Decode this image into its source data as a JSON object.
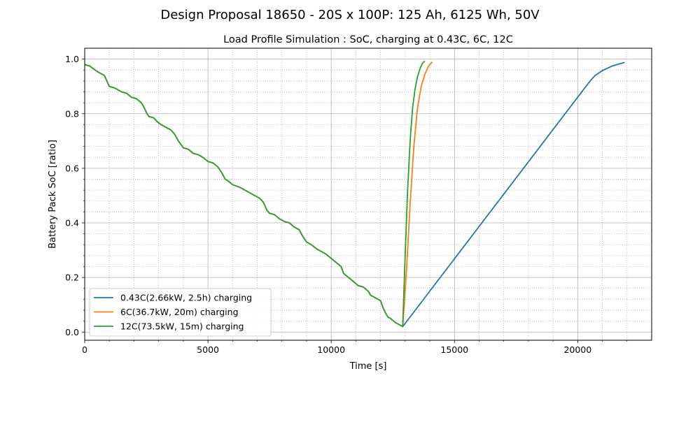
{
  "figure": {
    "suptitle": "Design Proposal 18650 - 20S x 100P: 125 Ah, 6125 Wh, 50V"
  },
  "chart_data": {
    "type": "line",
    "title": "Load Profile Simulation : SoC, charging at 0.43C, 6C, 12C",
    "xlabel": "Time [s]",
    "ylabel": "Battery Pack SoC [ratio]",
    "xlim": [
      0,
      23000
    ],
    "ylim": [
      -0.03,
      1.04
    ],
    "xticks": [
      0,
      5000,
      10000,
      15000,
      20000
    ],
    "xtick_labels": [
      "0",
      "5000",
      "10000",
      "15000",
      "20000"
    ],
    "yticks": [
      0.0,
      0.2,
      0.4,
      0.6,
      0.8,
      1.0
    ],
    "ytick_labels": [
      "0.0",
      "0.2",
      "0.4",
      "0.6",
      "0.8",
      "1.0"
    ],
    "grid": true,
    "minor_grid": true,
    "legend_position": "lower-left",
    "discharge": [
      [
        0,
        0.98
      ],
      [
        200,
        0.975
      ],
      [
        500,
        0.955
      ],
      [
        800,
        0.94
      ],
      [
        900,
        0.92
      ],
      [
        1000,
        0.9
      ],
      [
        1200,
        0.895
      ],
      [
        1300,
        0.89
      ],
      [
        1500,
        0.88
      ],
      [
        1700,
        0.875
      ],
      [
        1900,
        0.86
      ],
      [
        2100,
        0.855
      ],
      [
        2300,
        0.84
      ],
      [
        2400,
        0.825
      ],
      [
        2500,
        0.805
      ],
      [
        2600,
        0.79
      ],
      [
        2800,
        0.785
      ],
      [
        2950,
        0.77
      ],
      [
        3100,
        0.76
      ],
      [
        3300,
        0.75
      ],
      [
        3500,
        0.74
      ],
      [
        3650,
        0.725
      ],
      [
        3800,
        0.7
      ],
      [
        4000,
        0.675
      ],
      [
        4200,
        0.67
      ],
      [
        4400,
        0.655
      ],
      [
        4600,
        0.65
      ],
      [
        4800,
        0.64
      ],
      [
        5000,
        0.625
      ],
      [
        5200,
        0.62
      ],
      [
        5400,
        0.605
      ],
      [
        5550,
        0.585
      ],
      [
        5700,
        0.56
      ],
      [
        5800,
        0.555
      ],
      [
        6000,
        0.54
      ],
      [
        6300,
        0.53
      ],
      [
        6500,
        0.52
      ],
      [
        6700,
        0.51
      ],
      [
        6900,
        0.5
      ],
      [
        7100,
        0.49
      ],
      [
        7250,
        0.475
      ],
      [
        7400,
        0.445
      ],
      [
        7500,
        0.435
      ],
      [
        7700,
        0.43
      ],
      [
        7900,
        0.415
      ],
      [
        8100,
        0.405
      ],
      [
        8300,
        0.4
      ],
      [
        8500,
        0.385
      ],
      [
        8700,
        0.375
      ],
      [
        8850,
        0.35
      ],
      [
        9000,
        0.33
      ],
      [
        9200,
        0.32
      ],
      [
        9400,
        0.305
      ],
      [
        9600,
        0.295
      ],
      [
        9800,
        0.285
      ],
      [
        10000,
        0.27
      ],
      [
        10200,
        0.255
      ],
      [
        10400,
        0.24
      ],
      [
        10500,
        0.215
      ],
      [
        10700,
        0.2
      ],
      [
        10900,
        0.185
      ],
      [
        11100,
        0.17
      ],
      [
        11300,
        0.165
      ],
      [
        11500,
        0.15
      ],
      [
        11600,
        0.135
      ],
      [
        11800,
        0.125
      ],
      [
        12000,
        0.115
      ],
      [
        12100,
        0.09
      ],
      [
        12200,
        0.07
      ],
      [
        12300,
        0.055
      ],
      [
        12400,
        0.05
      ],
      [
        12600,
        0.035
      ],
      [
        12800,
        0.025
      ],
      [
        12900,
        0.02
      ]
    ],
    "series": [
      {
        "name": "0.43C(2.66kW, 2.5h) charging",
        "color": "#1f77b4",
        "points": [
          [
            12900,
            0.02
          ],
          [
            20500,
            0.92
          ],
          [
            20700,
            0.94
          ],
          [
            21000,
            0.958
          ],
          [
            21400,
            0.975
          ],
          [
            21900,
            0.988
          ]
        ]
      },
      {
        "name": "6C(36.7kW, 20m) charging",
        "color": "#ff7f0e",
        "points": [
          [
            12900,
            0.02
          ],
          [
            13050,
            0.22
          ],
          [
            13200,
            0.47
          ],
          [
            13350,
            0.68
          ],
          [
            13500,
            0.82
          ],
          [
            13650,
            0.9
          ],
          [
            13800,
            0.945
          ],
          [
            13950,
            0.975
          ],
          [
            14100,
            0.99
          ]
        ]
      },
      {
        "name": "12C(73.5kW, 15m) charging",
        "color": "#2ca02c",
        "points": [
          [
            12900,
            0.02
          ],
          [
            13000,
            0.28
          ],
          [
            13100,
            0.52
          ],
          [
            13200,
            0.7
          ],
          [
            13300,
            0.82
          ],
          [
            13400,
            0.89
          ],
          [
            13500,
            0.935
          ],
          [
            13600,
            0.965
          ],
          [
            13700,
            0.985
          ],
          [
            13800,
            0.993
          ]
        ]
      }
    ]
  }
}
